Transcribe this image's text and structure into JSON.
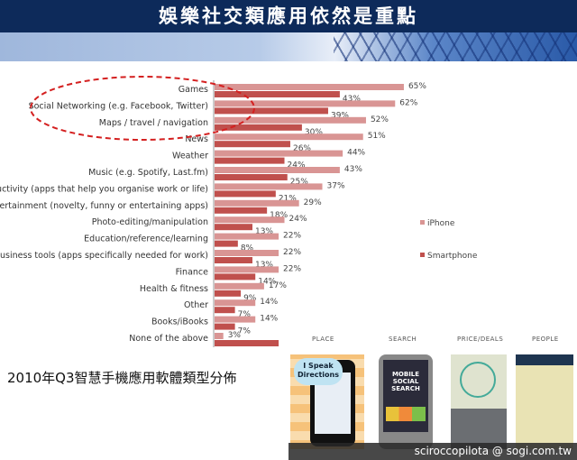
{
  "header": {
    "title": "娛樂社交類應用依然是重點"
  },
  "chart_data": {
    "type": "bar",
    "orientation": "horizontal",
    "categories": [
      "Games",
      "Social Networking (e.g. Facebook, Twitter)",
      "Maps / travel / navigation",
      "News",
      "Weather",
      "Music (e.g. Spotify, Last.fm)",
      "Productivity (apps that help you organise work or life)",
      "Entertainment (novelty, funny or entertaining apps)",
      "Photo-editing/manipulation",
      "Education/reference/learning",
      "Business tools (apps specifically needed for work)",
      "Finance",
      "Health & fitness",
      "Other",
      "Books/iBooks",
      "None of the above"
    ],
    "series": [
      {
        "name": "iPhone",
        "color": "#d99594",
        "values": [
          65,
          62,
          52,
          51,
          44,
          43,
          37,
          29,
          24,
          22,
          22,
          22,
          17,
          14,
          14,
          3
        ],
        "labels": [
          "65%",
          "62%",
          "52%",
          "51%",
          "44%",
          "43%",
          "37%",
          "29%",
          "24%",
          "22%",
          "22%",
          "22%",
          "17%",
          "14%",
          "14%",
          "3%"
        ]
      },
      {
        "name": "Smartphone",
        "color": "#c0504d",
        "values": [
          43,
          39,
          30,
          26,
          24,
          25,
          21,
          18,
          13,
          8,
          13,
          14,
          9,
          7,
          7,
          22
        ],
        "labels": [
          "43%",
          "39%",
          "30%",
          "26%",
          "24%",
          "25%",
          "21%",
          "18%",
          "13%",
          "8%",
          "13%",
          "14%",
          "9%",
          "7%",
          "7%",
          ""
        ]
      }
    ],
    "legend": "right",
    "highlight": "dashed red ellipse around top 3 categories",
    "grid": false
  },
  "caption": "2010年Q3智慧手機應用軟體類型分佈",
  "gallery": {
    "columns": [
      "PLACE",
      "SEARCH",
      "PRICE/DEALS",
      "PEOPLE"
    ],
    "place_bubble": "I Speak Directions",
    "search_screen": "MOBILE SOCIAL SEARCH"
  },
  "footer": "sciroccopilota  @ sogi.com.tw"
}
